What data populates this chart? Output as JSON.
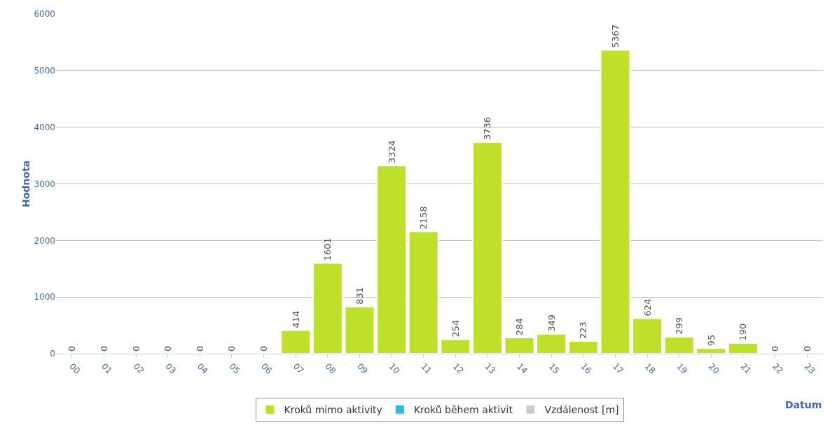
{
  "chart_data": {
    "type": "bar",
    "xlabel": "Datum",
    "ylabel": "Hodnota",
    "categories": [
      "00",
      "01",
      "02",
      "03",
      "04",
      "05",
      "06",
      "07",
      "08",
      "09",
      "10",
      "11",
      "12",
      "13",
      "14",
      "15",
      "16",
      "17",
      "18",
      "19",
      "20",
      "21",
      "22",
      "23"
    ],
    "series": [
      {
        "name": "Kroků mimo aktivity",
        "color": "#bde02a",
        "values": [
          0,
          0,
          0,
          0,
          0,
          0,
          0,
          414,
          1601,
          831,
          3324,
          2158,
          254,
          3736,
          284,
          349,
          223,
          5367,
          624,
          299,
          95,
          190,
          0,
          0
        ]
      },
      {
        "name": "Kroků během aktivit",
        "color": "#2fb5f0",
        "values": [
          null,
          null,
          null,
          null,
          null,
          null,
          null,
          null,
          null,
          null,
          null,
          null,
          null,
          null,
          null,
          null,
          null,
          null,
          null,
          null,
          null,
          null,
          null,
          null
        ]
      },
      {
        "name": "Vzdálenost [m]",
        "color": "#cccccc",
        "values": [
          null,
          null,
          null,
          null,
          null,
          null,
          null,
          null,
          null,
          null,
          null,
          null,
          null,
          null,
          null,
          null,
          null,
          null,
          null,
          null,
          null,
          null,
          null,
          null
        ]
      }
    ],
    "ylim": [
      0,
      6000
    ],
    "yticks": [
      0,
      1000,
      2000,
      3000,
      4000,
      5000,
      6000
    ],
    "grid": "y",
    "legend": "bottom",
    "data_labels": true
  }
}
